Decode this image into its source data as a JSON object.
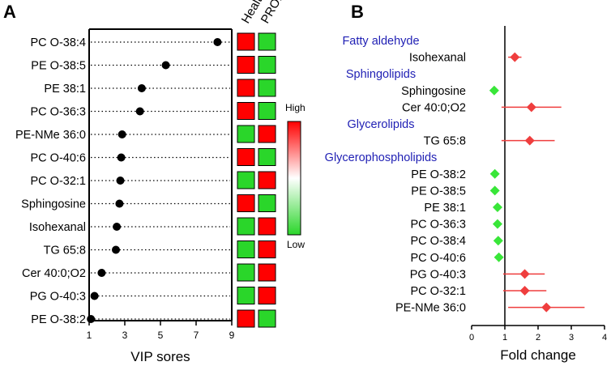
{
  "chart_data": [
    {
      "type": "scatter",
      "panel_label": "A",
      "xlabel": "VIP sores",
      "xlim": [
        1,
        9
      ],
      "xticks": [
        1,
        3,
        5,
        7,
        9
      ],
      "categories": [
        "PC O-38:4",
        "PE O-38:5",
        "PE 38:1",
        "PC O-36:3",
        "PE-NMe 36:0",
        "PC O-40:6",
        "PC O-32:1",
        "Sphingosine",
        "Isohexanal",
        "TG 65:8",
        "Cer 40:0;O2",
        "PG O-40:3",
        "PE O-38:2"
      ],
      "values": [
        8.2,
        5.3,
        3.95,
        3.85,
        2.85,
        2.8,
        2.75,
        2.7,
        2.55,
        2.5,
        1.7,
        1.3,
        1.1
      ],
      "heatmap": {
        "columns": [
          "Healthy",
          "PROM"
        ],
        "levels": [
          [
            "high",
            "low"
          ],
          [
            "high",
            "low"
          ],
          [
            "high",
            "low"
          ],
          [
            "high",
            "low"
          ],
          [
            "low",
            "high"
          ],
          [
            "high",
            "low"
          ],
          [
            "low",
            "high"
          ],
          [
            "high",
            "low"
          ],
          [
            "low",
            "high"
          ],
          [
            "low",
            "high"
          ],
          [
            "low",
            "high"
          ],
          [
            "low",
            "high"
          ],
          [
            "high",
            "low"
          ]
        ]
      },
      "colorbar": {
        "high_label": "High",
        "low_label": "Low",
        "high_color": "#ff0000",
        "low_color": "#2ad62a"
      }
    },
    {
      "type": "scatter",
      "panel_label": "B",
      "xlabel": "Fold change",
      "xlim": [
        0,
        4
      ],
      "xticks": [
        0,
        1,
        2,
        3,
        4
      ],
      "reference_line": 1,
      "rows": [
        {
          "label": "Fatty aldehyde",
          "is_group": true
        },
        {
          "label": "Isohexanal",
          "value": 1.3,
          "low": 1.1,
          "high": 1.5,
          "direction": "up"
        },
        {
          "label": "Sphingolipids",
          "is_group": true
        },
        {
          "label": "Sphingosine",
          "value": 0.68,
          "direction": "down"
        },
        {
          "label": "Cer 40:0;O2",
          "value": 1.8,
          "low": 0.9,
          "high": 2.7,
          "direction": "up"
        },
        {
          "label": "Glycerolipids",
          "is_group": true
        },
        {
          "label": "TG 65:8",
          "value": 1.75,
          "low": 0.9,
          "high": 2.5,
          "direction": "up"
        },
        {
          "label": "Glycerophospholipids",
          "is_group": true
        },
        {
          "label": "PE O-38:2",
          "value": 0.7,
          "direction": "down"
        },
        {
          "label": "PE O-38:5",
          "value": 0.7,
          "direction": "down"
        },
        {
          "label": "PE 38:1",
          "value": 0.78,
          "direction": "down"
        },
        {
          "label": "PC O-36:3",
          "value": 0.78,
          "direction": "down"
        },
        {
          "label": "PC O-38:4",
          "value": 0.8,
          "direction": "down"
        },
        {
          "label": "PC O-40:6",
          "value": 0.82,
          "direction": "down"
        },
        {
          "label": "PG O-40:3",
          "value": 1.6,
          "low": 0.95,
          "high": 2.2,
          "direction": "up"
        },
        {
          "label": "PC O-32:1",
          "value": 1.6,
          "low": 0.95,
          "high": 2.25,
          "direction": "up"
        },
        {
          "label": "PE-NMe 36:0",
          "value": 2.25,
          "low": 1.1,
          "high": 3.4,
          "direction": "up"
        }
      ],
      "colors": {
        "up": "#ef3e3e",
        "down": "#39e639",
        "group_label": "#1f1fb4"
      }
    }
  ]
}
